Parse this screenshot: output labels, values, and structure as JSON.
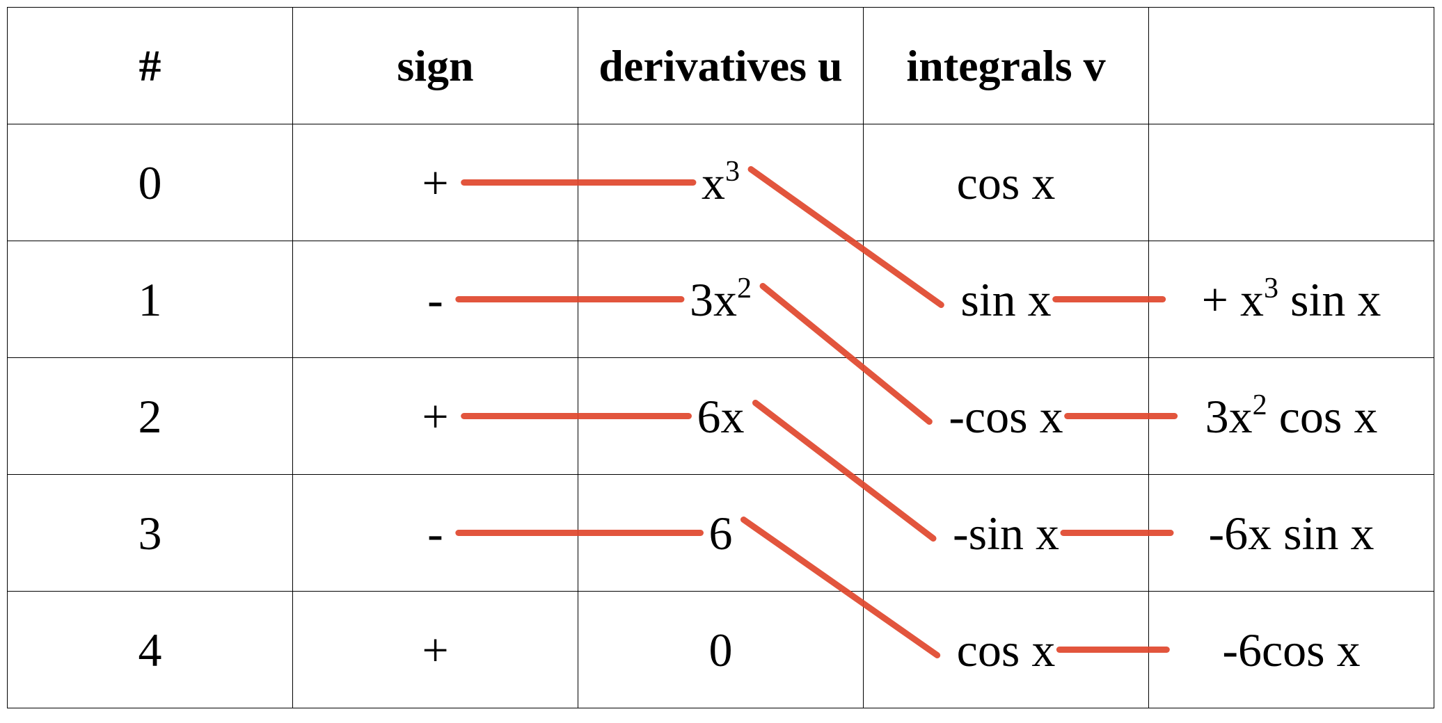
{
  "table": {
    "headers": [
      "#",
      "sign",
      "derivatives u",
      "integrals v",
      ""
    ],
    "rows": [
      {
        "index": "0",
        "sign": "+",
        "derivative": {
          "base": "x",
          "sup": "3",
          "tail": ""
        },
        "integral": "cos x",
        "product": {
          "pre": "",
          "sup": "",
          "post": ""
        }
      },
      {
        "index": "1",
        "sign": "-",
        "derivative": {
          "base": "3x",
          "sup": "2",
          "tail": ""
        },
        "integral": "sin x",
        "product": {
          "pre": "+ x",
          "sup": "3",
          "post": " sin x"
        }
      },
      {
        "index": "2",
        "sign": "+",
        "derivative": {
          "base": "6x",
          "sup": "",
          "tail": ""
        },
        "integral": "-cos x",
        "product": {
          "pre": "3x",
          "sup": "2",
          "post": " cos x"
        }
      },
      {
        "index": "3",
        "sign": "-",
        "derivative": {
          "base": "6",
          "sup": "",
          "tail": ""
        },
        "integral": "-sin x",
        "product": {
          "pre": "-6x sin x",
          "sup": "",
          "post": ""
        }
      },
      {
        "index": "4",
        "sign": "+",
        "derivative": {
          "base": "0",
          "sup": "",
          "tail": ""
        },
        "integral": "cos x",
        "product": {
          "pre": "-6cos x",
          "sup": "",
          "post": ""
        }
      }
    ]
  },
  "colors": {
    "connector": "#e0472d",
    "grid": "#000000"
  }
}
